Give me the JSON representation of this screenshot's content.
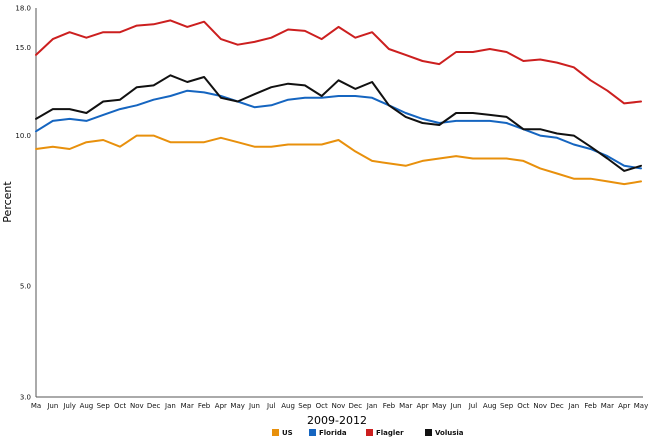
{
  "chart_data": {
    "type": "line",
    "xlabel": "2009-2012",
    "ylabel": "Percent",
    "ylim": [
      3.0,
      18.0
    ],
    "y_ticks": [
      "3.0",
      "5.0",
      "10.0",
      "15.0",
      "18.0"
    ],
    "grid": false,
    "legend_position": "bottom-center",
    "categories": [
      "Ma",
      "Jun",
      "July",
      "Aug",
      "Sep",
      "Oct",
      "Nov",
      "Dec",
      "Jan",
      "Mar",
      "Feb",
      "Apr",
      "May",
      "Jun",
      "Jul",
      "Aug",
      "Sep",
      "Oct",
      "Nov",
      "Dec",
      "Jan",
      "Feb",
      "Mar",
      "Apr",
      "May",
      "Jun",
      "Jul",
      "Aug",
      "Sep",
      "Oct",
      "Nov",
      "Dec",
      "Jan",
      "Feb",
      "Mar",
      "Apr",
      "May"
    ],
    "series": [
      {
        "name": "US",
        "color": "#e8900c",
        "values": [
          9.4,
          9.5,
          9.4,
          9.7,
          9.8,
          9.5,
          10.0,
          10.0,
          9.7,
          9.7,
          9.7,
          9.9,
          9.7,
          9.5,
          9.5,
          9.6,
          9.6,
          9.6,
          9.8,
          9.3,
          8.9,
          8.8,
          8.7,
          8.9,
          9.0,
          9.1,
          9.0,
          9.0,
          9.0,
          8.9,
          8.6,
          8.4,
          8.2,
          8.2,
          8.1,
          8.0,
          8.1
        ]
      },
      {
        "name": "Florida",
        "color": "#1565c0",
        "values": [
          10.2,
          10.7,
          10.8,
          10.7,
          11.0,
          11.3,
          11.5,
          11.8,
          12.0,
          12.3,
          12.2,
          12.0,
          11.7,
          11.4,
          11.5,
          11.8,
          11.9,
          11.9,
          12.0,
          12.0,
          11.9,
          11.5,
          11.1,
          10.8,
          10.6,
          10.7,
          10.7,
          10.7,
          10.6,
          10.3,
          10.0,
          9.9,
          9.6,
          9.4,
          9.1,
          8.7,
          8.6
        ]
      },
      {
        "name": "Flagler",
        "color": "#cc1f1f",
        "values": [
          14.5,
          15.6,
          16.1,
          15.7,
          16.1,
          16.1,
          16.6,
          16.7,
          17.0,
          16.5,
          16.9,
          15.6,
          15.2,
          15.4,
          15.7,
          16.3,
          16.2,
          15.6,
          16.5,
          15.7,
          16.1,
          14.9,
          14.5,
          14.1,
          13.9,
          14.7,
          14.7,
          14.9,
          14.7,
          14.1,
          14.2,
          14.0,
          13.7,
          12.9,
          12.3,
          11.6,
          11.7
        ]
      },
      {
        "name": "Volusia",
        "color": "#111111",
        "values": [
          10.8,
          11.3,
          11.3,
          11.1,
          11.7,
          11.8,
          12.5,
          12.6,
          13.2,
          12.8,
          13.1,
          11.9,
          11.7,
          12.1,
          12.5,
          12.7,
          12.6,
          12.0,
          12.9,
          12.4,
          12.8,
          11.5,
          10.9,
          10.6,
          10.5,
          11.1,
          11.1,
          11.0,
          10.9,
          10.3,
          10.3,
          10.1,
          10.0,
          9.5,
          9.0,
          8.5,
          8.7
        ]
      }
    ]
  }
}
